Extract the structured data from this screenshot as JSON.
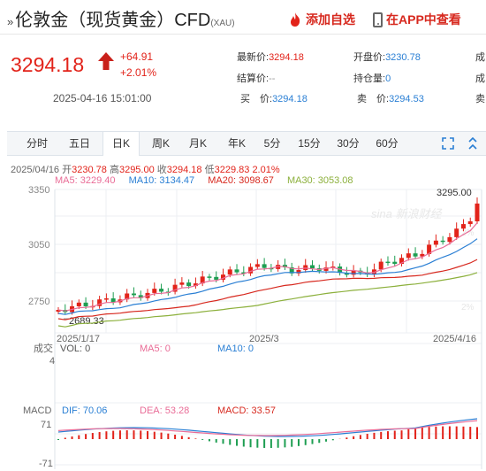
{
  "header": {
    "title_prefix": "»",
    "title": "伦敦金（现货黄金）CFD",
    "code": "(XAU)",
    "add_watchlist": "添加自选",
    "open_app": "在APP中查看"
  },
  "quote": {
    "price": "3294.18",
    "change": "+64.91",
    "change_pct": "+2.01%",
    "datetime": "2025-04-16 15:01:00"
  },
  "stats": {
    "latest_label": "最新价:",
    "latest_value": "3294.18",
    "open_label": "开盘价:",
    "open_value": "3230.78",
    "settle_label": "结算价:",
    "settle_value": "--",
    "position_label": "持仓量:",
    "position_value": "0",
    "buy_label": "买　价:",
    "buy_value": "3294.18",
    "sell_label": "卖　价:",
    "sell_value": "3294.53",
    "cut1": "成",
    "cut2": "卖"
  },
  "tabs": [
    "分时",
    "五日",
    "日K",
    "周K",
    "月K",
    "年K",
    "5分",
    "15分",
    "30分",
    "60分"
  ],
  "active_tab": "日K",
  "ohlc_line": {
    "date": "2025/04/16",
    "open_label": "开",
    "open": "3230.78",
    "high_label": "高",
    "high": "3295.00",
    "close_label": "收",
    "close": "3294.18",
    "low_label": "低",
    "low": "3229.83",
    "pct": "2.01%"
  },
  "ma_line": {
    "ma5": "MA5: 3229.40",
    "ma10": "MA10: 3134.47",
    "ma20": "MA20: 3098.67",
    "ma30": "MA30: 3053.08"
  },
  "chart_data": {
    "type": "candlestick",
    "y_ticks": [
      "3350",
      "3050",
      "2750"
    ],
    "right_ticks": [
      "2%",
      "2%"
    ],
    "x_ticks": [
      "2025/1/17",
      "2025/3",
      "2025/4/16"
    ],
    "max_label": "3295.00",
    "min_label": "2689.33",
    "watermark": "sina 新浪财经",
    "volume": {
      "title": "成交",
      "axis_top": "4",
      "vol": "VOL: 0",
      "ma5": "MA5: 0",
      "ma10": "MA10: 0"
    },
    "macd": {
      "title": "MACD",
      "dif": "DIF: 70.06",
      "dea": "DEA: 53.28",
      "macd": "MACD: 33.57",
      "axis_top": "71",
      "axis_bottom": "-71"
    },
    "colors": {
      "up": "#e2231a",
      "down": "#1e9e52",
      "ma5": "#e96c97",
      "ma10": "#2a7fd4",
      "ma20": "#d7281e",
      "ma30": "#8cb03c"
    }
  }
}
